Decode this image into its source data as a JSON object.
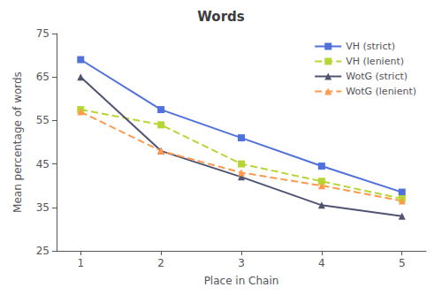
{
  "chart_data": {
    "type": "line",
    "title": "Words",
    "xlabel": "Place in Chain",
    "ylabel": "Mean percentage of words",
    "x": [
      1,
      2,
      3,
      4,
      5
    ],
    "xlim": [
      0.7,
      5.3
    ],
    "xticks": [
      1,
      2,
      3,
      4,
      5
    ],
    "ylim": [
      25,
      75
    ],
    "yticks": [
      25,
      35,
      45,
      55,
      65,
      75
    ],
    "grid": false,
    "legend": "upper right",
    "series": [
      {
        "name": "VH (strict)",
        "values": [
          69,
          57.5,
          51,
          44.5,
          38.5
        ],
        "line_style": "solid",
        "marker": "square"
      },
      {
        "name": "VH (lenient)",
        "values": [
          57.5,
          54,
          45,
          41,
          37
        ],
        "line_style": "dashed",
        "marker": "square"
      },
      {
        "name": "WotG (strict)",
        "values": [
          65,
          48,
          42,
          35.5,
          33
        ],
        "line_style": "solid",
        "marker": "triangle"
      },
      {
        "name": "WotG (lenient)",
        "values": [
          57,
          48,
          43,
          40,
          36.5
        ],
        "line_style": "dashed",
        "marker": "triangle"
      }
    ]
  }
}
